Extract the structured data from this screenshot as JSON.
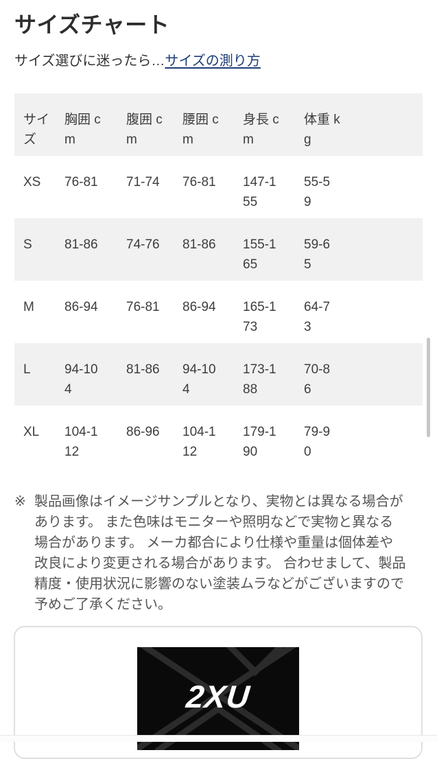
{
  "page": {
    "title": "サイズチャート",
    "subtitle_prefix": "サイズ選びに迷ったら…",
    "subtitle_link": "サイズの測り方"
  },
  "size_table": {
    "headers": [
      "サイ\nズ",
      "胸囲 c\nm",
      "腹囲 c\nm",
      "腰囲 c\nm",
      "身長 c\nm",
      "体重 k\ng"
    ],
    "rows": [
      {
        "size": "XS",
        "values": [
          "76-81",
          "71-74",
          "76-81",
          "147-1\n55",
          "55-5\n9"
        ]
      },
      {
        "size": "S",
        "values": [
          "81-86",
          "74-76",
          "81-86",
          "155-1\n65",
          "59-6\n5"
        ]
      },
      {
        "size": "M",
        "values": [
          "86-94",
          "76-81",
          "86-94",
          "165-1\n73",
          "64-7\n3"
        ]
      },
      {
        "size": "L",
        "values": [
          "94-10\n4",
          "81-86",
          "94-10\n4",
          "173-1\n88",
          "70-8\n6"
        ]
      },
      {
        "size": "XL",
        "values": [
          "104-1\n12",
          "86-96",
          "104-1\n12",
          "179-1\n90",
          "79-9\n0"
        ]
      }
    ]
  },
  "disclaimer": {
    "mark": "※",
    "text": "製品画像はイメージサンプルとなり、実物とは異なる場合があります。 また色味はモニターや照明などで実物と異なる場合があります。 メーカ都合により仕様や重量は個体差や改良により変更される場合があります。 合わせまして、製品精度・使用状況に影響のない塗装ムラなどがございますので予めご了承ください。"
  },
  "product_image": {
    "brand": "2XU"
  },
  "colors": {
    "link": "#1e3c78",
    "row_stripe": "#f1f1f1",
    "brand_background": "#0a0a0a",
    "brand_logo": "#ffffff"
  }
}
